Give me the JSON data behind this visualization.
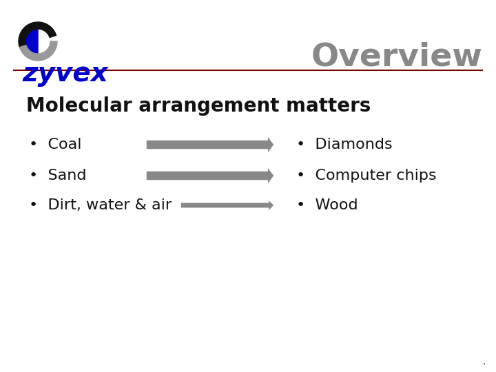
{
  "title": "Overview",
  "title_color": "#888888",
  "title_fontsize": 34,
  "subtitle": "Molecular arrangement matters",
  "subtitle_fontsize": 20,
  "bg_color": "#ffffff",
  "separator_color": "#7b0000",
  "left_items": [
    "Coal",
    "Sand",
    "Dirt, water & air"
  ],
  "right_items": [
    "Diamonds",
    "Computer chips",
    "Wood"
  ],
  "item_fontsize": 16,
  "item_color": "#111111",
  "arrow_color": "#888888",
  "logo_text": "zyvex",
  "logo_color": "#0000cc",
  "logo_fontsize": 28,
  "bullet": "•"
}
